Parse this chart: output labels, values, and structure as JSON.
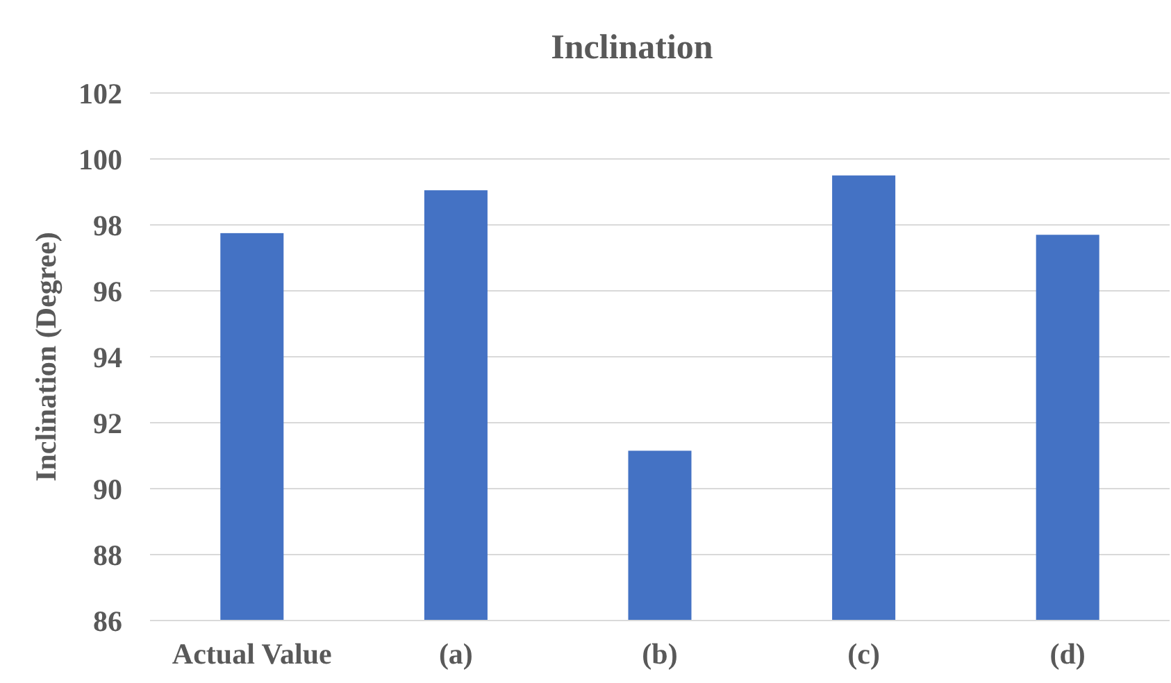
{
  "chart_data": {
    "type": "bar",
    "title": "Inclination",
    "ylabel": "Inclination (Degree)",
    "categories": [
      "Actual Value",
      "(a)",
      "(b)",
      "(c)",
      "(d)"
    ],
    "values": [
      97.75,
      99.05,
      91.15,
      99.5,
      97.7
    ],
    "color": "#4472c4",
    "ylim": [
      86,
      102
    ],
    "yticks": [
      86,
      88,
      90,
      92,
      94,
      96,
      98,
      100,
      102
    ],
    "grid": "y"
  }
}
